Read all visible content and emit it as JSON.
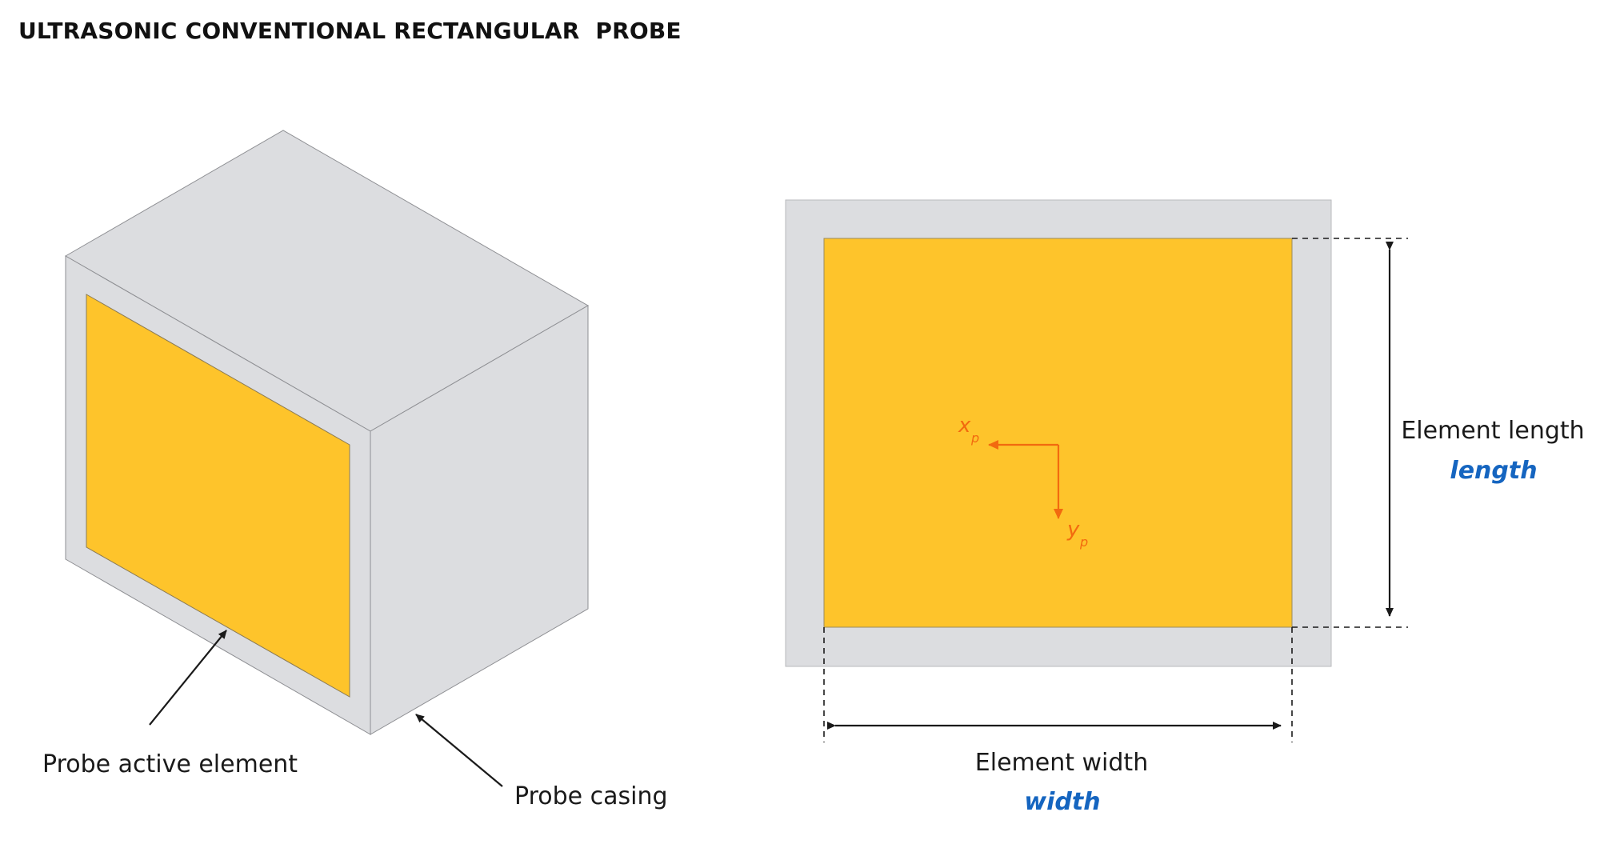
{
  "title": "ULTRASONIC CONVENTIONAL RECTANGULAR  PROBE",
  "colors": {
    "casing": "#dcdde0",
    "element": "#fec42b",
    "axis": "#f26a0f",
    "param": "#1565c0",
    "line": "#1a1a1a"
  },
  "labels": {
    "active_element": "Probe active element",
    "casing": "Probe casing",
    "length_label": "Element length",
    "length_param": "length",
    "width_label": "Element width",
    "width_param": "width"
  },
  "axes": {
    "x": "x",
    "x_sub": "p",
    "y": "y",
    "y_sub": "p"
  }
}
